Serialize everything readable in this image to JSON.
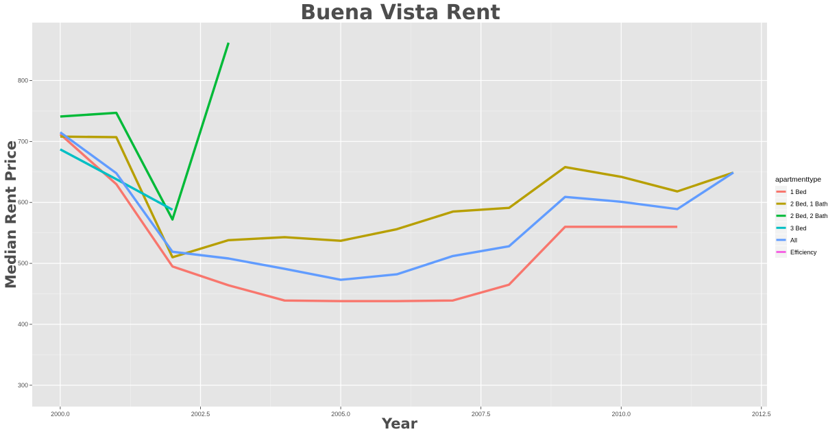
{
  "chart_data": {
    "type": "line",
    "title": "Buena Vista Rent",
    "xlabel": "Year",
    "ylabel": "Median Rent Price",
    "xlim": [
      1999.5,
      2012.6
    ],
    "ylim": [
      265,
      895
    ],
    "x_ticks": [
      2000.0,
      2002.5,
      2005.0,
      2007.5,
      2010.0,
      2012.5
    ],
    "x_tick_labels": [
      "2000.0",
      "2002.5",
      "2005.0",
      "2007.5",
      "2010.0",
      "2012.5"
    ],
    "y_ticks": [
      300,
      400,
      500,
      600,
      700,
      800
    ],
    "y_tick_labels": [
      "300",
      "400",
      "500",
      "600",
      "700",
      "800"
    ],
    "grid": true,
    "legend_title": "apartmenttype",
    "legend_position": "right",
    "series": [
      {
        "name": "1 Bed",
        "color": "#F8766D",
        "x": [
          2000,
          2001,
          2002,
          2003,
          2004,
          2005,
          2006,
          2007,
          2008,
          2009,
          2010,
          2011
        ],
        "y": [
          712,
          630,
          495,
          464,
          439,
          438,
          438,
          439,
          465,
          560,
          560,
          560
        ]
      },
      {
        "name": "2 Bed, 1 Bath",
        "color": "#B79F00",
        "x": [
          2000,
          2001,
          2002,
          2003,
          2004,
          2005,
          2006,
          2007,
          2008,
          2009,
          2010,
          2011,
          2012
        ],
        "y": [
          708,
          707,
          510,
          538,
          543,
          537,
          556,
          585,
          591,
          658,
          642,
          618,
          649
        ]
      },
      {
        "name": "2 Bed, 2 Bath",
        "color": "#00BA38",
        "x": [
          2000,
          2001,
          2002,
          2003
        ],
        "y": [
          741,
          747,
          572,
          862
        ]
      },
      {
        "name": "3 Bed",
        "color": "#00BFC4",
        "x": [
          2000,
          2001,
          2002
        ],
        "y": [
          687,
          638,
          588
        ]
      },
      {
        "name": "All",
        "color": "#619CFF",
        "x": [
          2000,
          2001,
          2002,
          2003,
          2004,
          2005,
          2006,
          2007,
          2008,
          2009,
          2010,
          2011,
          2012
        ],
        "y": [
          715,
          648,
          519,
          508,
          491,
          473,
          482,
          512,
          528,
          609,
          601,
          589,
          649
        ]
      },
      {
        "name": "Efficiency",
        "color": "#F564E3",
        "x": [],
        "y": []
      }
    ]
  }
}
